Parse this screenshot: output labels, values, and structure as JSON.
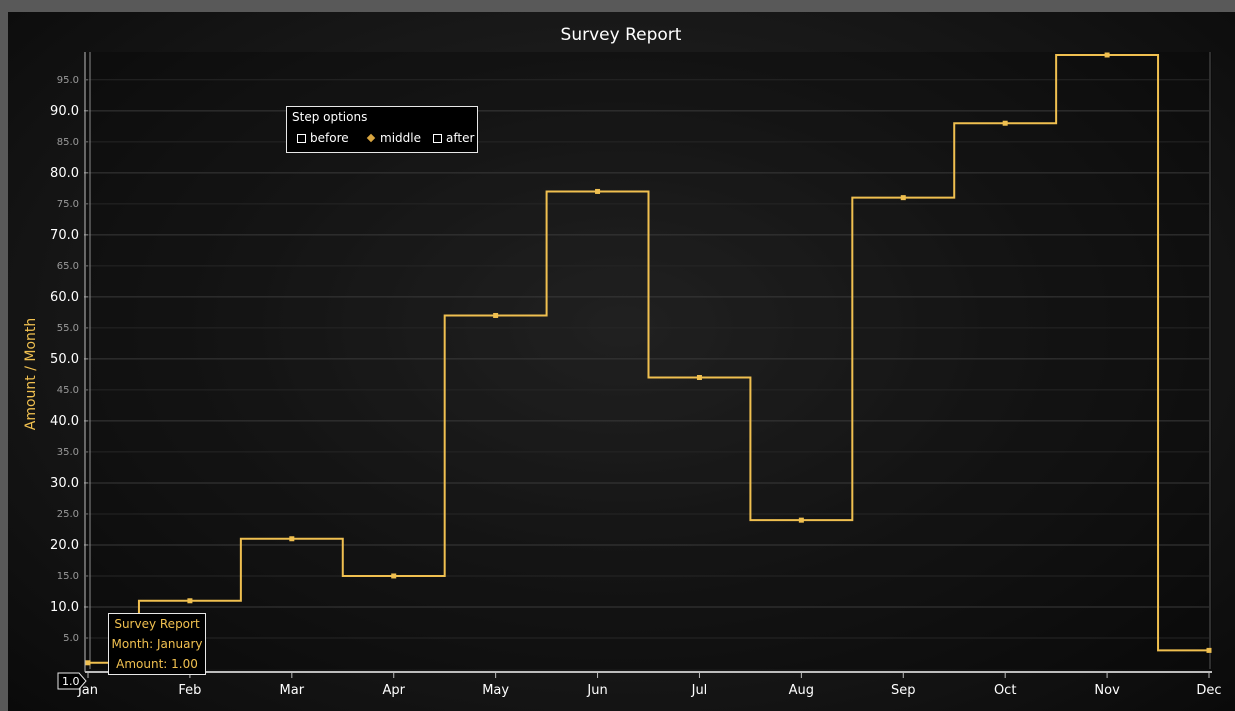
{
  "chart_data": {
    "type": "line",
    "step": "middle",
    "title": "Survey Report",
    "xlabel": "",
    "ylabel": "Amount / Month",
    "categories": [
      "Jan",
      "Feb",
      "Mar",
      "Apr",
      "May",
      "Jun",
      "Jul",
      "Aug",
      "Sep",
      "Oct",
      "Nov",
      "Dec"
    ],
    "series": [
      {
        "values": [
          1,
          11,
          21,
          15,
          57,
          77,
          47,
          24,
          76,
          88,
          99,
          3
        ]
      }
    ],
    "ylim": [
      0,
      99
    ],
    "y_major_ticks": [
      "10.0",
      "20.0",
      "30.0",
      "40.0",
      "50.0",
      "60.0",
      "70.0",
      "80.0",
      "90.0"
    ],
    "y_minor_ticks": [
      "5.0",
      "15.0",
      "25.0",
      "35.0",
      "45.0",
      "55.0",
      "65.0",
      "75.0",
      "85.0",
      "95.0"
    ],
    "grid": true,
    "line_color": "#f0c050",
    "grid_color": "#3a3a3a"
  },
  "legend": {
    "title": "Step options",
    "options": [
      {
        "label": "before",
        "selected": false
      },
      {
        "label": "middle",
        "selected": true
      },
      {
        "label": "after",
        "selected": false
      }
    ]
  },
  "tooltip": {
    "title": "Survey Report",
    "line1": "Month: January",
    "line2": "Amount: 1.00"
  },
  "cursor": {
    "y_value_label": "1.0"
  }
}
